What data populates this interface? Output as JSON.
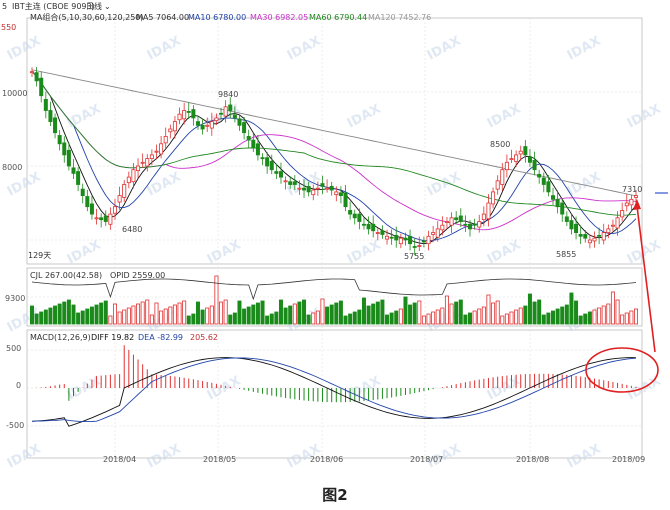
{
  "header": {
    "prefix": "5",
    "symbol": "IBT主连 (CBOE 9093)",
    "period": "日线",
    "ma_group": "MA组合(5,10,30,60,120,250)",
    "ma5": "MA5 7064.00",
    "ma10": "MA10 6780.00",
    "ma30": "MA30 6982.05",
    "ma60": "MA60 6790.44",
    "ma120": "MA120 7452.76"
  },
  "colors": {
    "up": "#e03030",
    "down": "#1a8a1a",
    "ma5": "#111111",
    "ma10": "#2244aa",
    "ma30": "#cc33cc",
    "ma60": "#228822",
    "ma120": "#888888",
    "circle": "#e02020"
  },
  "price_ticks": [
    "10000",
    "8000"
  ],
  "top_left_value": "550",
  "annotations": {
    "a9840": "9840",
    "a6480": "6480",
    "a5755": "5755",
    "a8500": "8500",
    "a5855": "5855",
    "a7310": "7310"
  },
  "days_label": "129天",
  "vol_header": {
    "cjl": "CJL 267.00(42.58)",
    "opid": "OPID 2559.00"
  },
  "vol_tick": "9300",
  "macd_header": {
    "name": "MACD(12,26,9)",
    "diff": "DIFF 19.82",
    "dea": "DEA -82.99",
    "val": "205.62"
  },
  "macd_ticks": [
    "500",
    "0",
    "-500"
  ],
  "x_labels": [
    "2018/04",
    "2018/05",
    "2018/06",
    "2018/07",
    "2018/08",
    "2018/09"
  ],
  "watermark": "IDAX",
  "caption": "图2",
  "chart_data": {
    "type": "candlestick",
    "x_labels": [
      "2018/04",
      "2018/05",
      "2018/06",
      "2018/07",
      "2018/08",
      "2018/09"
    ],
    "price_ticks": [
      10000,
      8000
    ],
    "annotated_points": [
      {
        "label": "9840",
        "value": 9840
      },
      {
        "label": "6480",
        "value": 6480
      },
      {
        "label": "5755",
        "value": 5755
      },
      {
        "label": "8500",
        "value": 8500
      },
      {
        "label": "5855",
        "value": 5855
      },
      {
        "label": "7310",
        "value": 7310
      }
    ],
    "macd_ticks": [
      500,
      0,
      -500
    ],
    "closes": [
      10550,
      10300,
      9900,
      9500,
      9200,
      8900,
      8600,
      8300,
      8000,
      7800,
      7500,
      7200,
      6900,
      6700,
      6600,
      6550,
      6500,
      6700,
      6900,
      7200,
      7500,
      7700,
      7900,
      8000,
      8100,
      8200,
      8300,
      8400,
      8600,
      8800,
      9000,
      9200,
      9400,
      9500,
      9450,
      9300,
      9100,
      9000,
      9100,
      9200,
      9300,
      9400,
      9600,
      9500,
      9300,
      9100,
      8900,
      8700,
      8500,
      8300,
      8200,
      8000,
      7900,
      7800,
      7700,
      7600,
      7500,
      7500,
      7400,
      7350,
      7300,
      7350,
      7400,
      7450,
      7400,
      7350,
      7300,
      7200,
      6900,
      6700,
      6600,
      6500,
      6400,
      6300,
      6250,
      6200,
      6150,
      6100,
      6050,
      6000,
      6050,
      6000,
      5900,
      5800,
      5850,
      5950,
      6100,
      6200,
      6300,
      6400,
      6500,
      6600,
      6550,
      6500,
      6400,
      6300,
      6400,
      6500,
      6700,
      7000,
      7300,
      7600,
      7900,
      8100,
      8200,
      8300,
      8400,
      8300,
      8100,
      7900,
      7700,
      7500,
      7300,
      7100,
      6900,
      6700,
      6500,
      6300,
      6200,
      6100,
      6050,
      6000,
      6050,
      6100,
      6200,
      6300,
      6400,
      6600,
      6800,
      7000,
      7100,
      7200
    ],
    "macd_range": [
      -750,
      650
    ]
  }
}
